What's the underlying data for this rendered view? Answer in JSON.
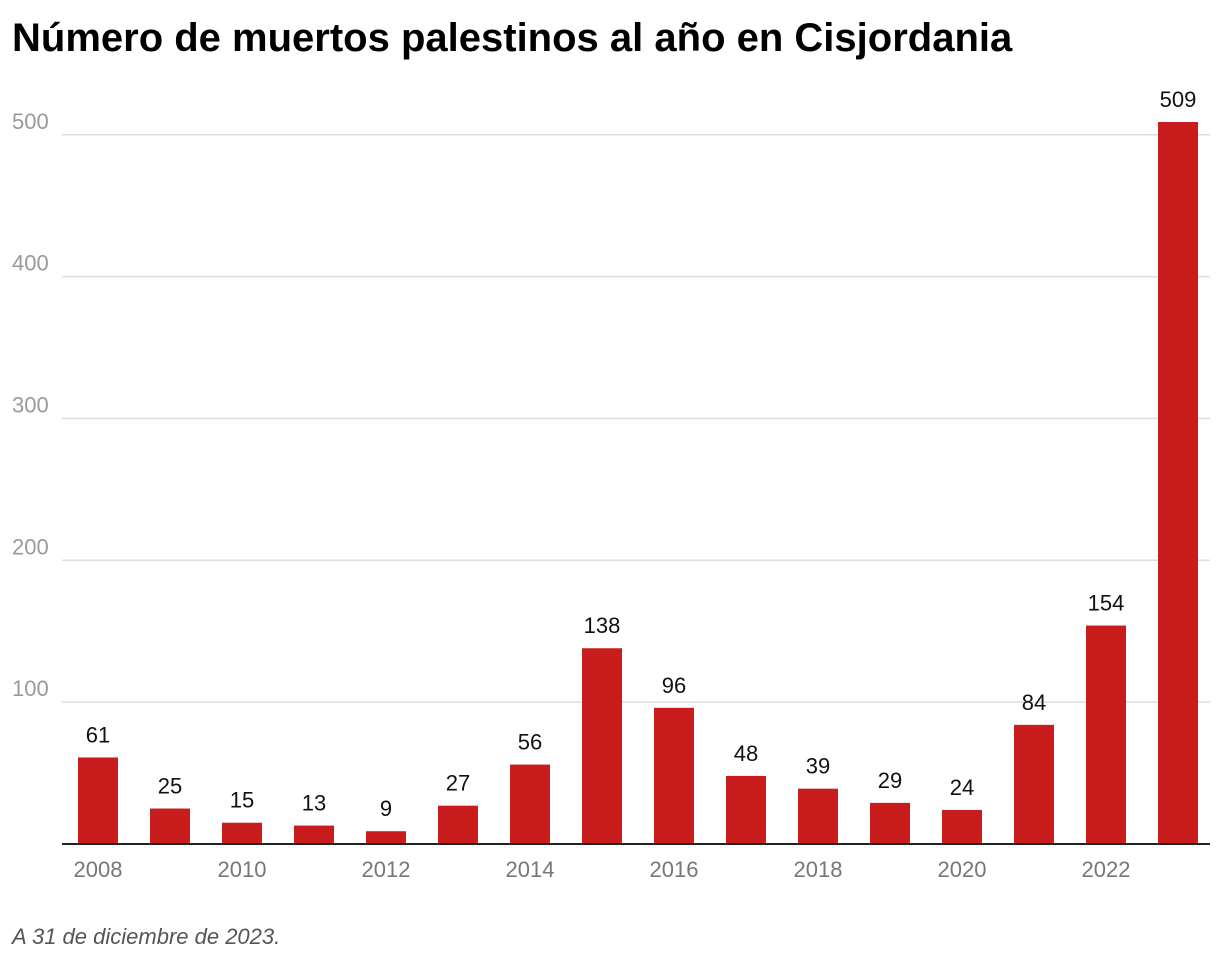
{
  "chart_data": {
    "type": "bar",
    "title": "Número de muertos palestinos al año en Cisjordania",
    "note": "A 31 de diciembre de 2023.",
    "categories": [
      "2008",
      "2009",
      "2010",
      "2011",
      "2012",
      "2013",
      "2014",
      "2015",
      "2016",
      "2017",
      "2018",
      "2019",
      "2020",
      "2021",
      "2022",
      "2023"
    ],
    "values": [
      61,
      25,
      15,
      13,
      9,
      27,
      56,
      138,
      96,
      48,
      39,
      29,
      24,
      84,
      154,
      509
    ],
    "x_tick_labels": [
      "2008",
      "",
      "2010",
      "",
      "2012",
      "",
      "2014",
      "",
      "2016",
      "",
      "2018",
      "",
      "2020",
      "",
      "2022",
      ""
    ],
    "y_ticks": [
      100,
      200,
      300,
      400,
      500
    ],
    "ylim": [
      0,
      510
    ],
    "xlabel": "",
    "ylabel": "",
    "grid": true,
    "bar_color": "#c81c1d"
  }
}
